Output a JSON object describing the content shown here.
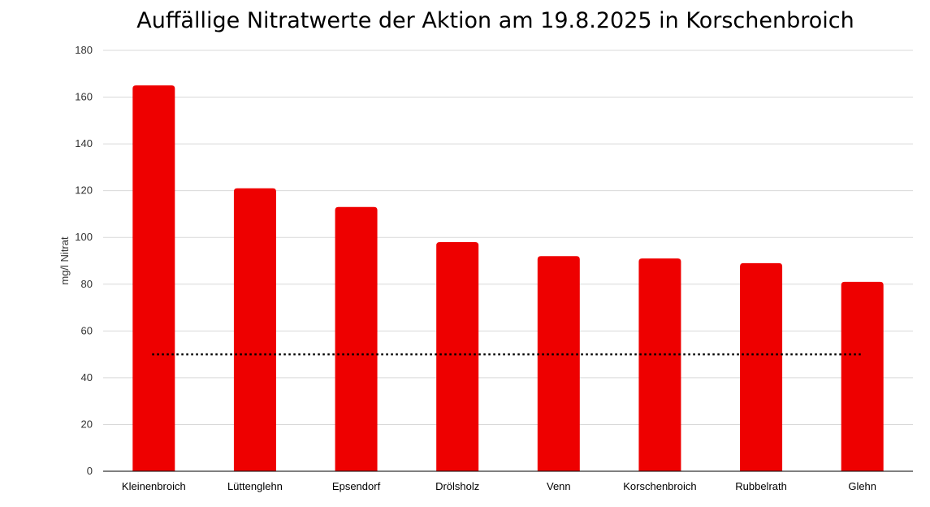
{
  "chart_data": {
    "type": "bar",
    "title": "Auffällige Nitratwerte der Aktion am 19.8.2025 in Korschenbroich",
    "xlabel": "",
    "ylabel": "mg/l Nitrat",
    "ylim": [
      0,
      180
    ],
    "yticks": [
      0,
      20,
      40,
      60,
      80,
      100,
      120,
      140,
      160,
      180
    ],
    "grid": true,
    "categories": [
      "Kleinenbroich",
      "Lüttenglehn",
      "Epsendorf",
      "Drölsholz",
      "Venn",
      "Korschenbroich",
      "Rubbelrath",
      "Glehn"
    ],
    "values": [
      165,
      121,
      113,
      98,
      92,
      91,
      89,
      81
    ],
    "reference_line": {
      "value": 50,
      "style": "dotted"
    },
    "colors": {
      "bar": "#ee0000",
      "grid": "#d9d9d9",
      "axis": "#000000",
      "reference": "#000000"
    }
  }
}
